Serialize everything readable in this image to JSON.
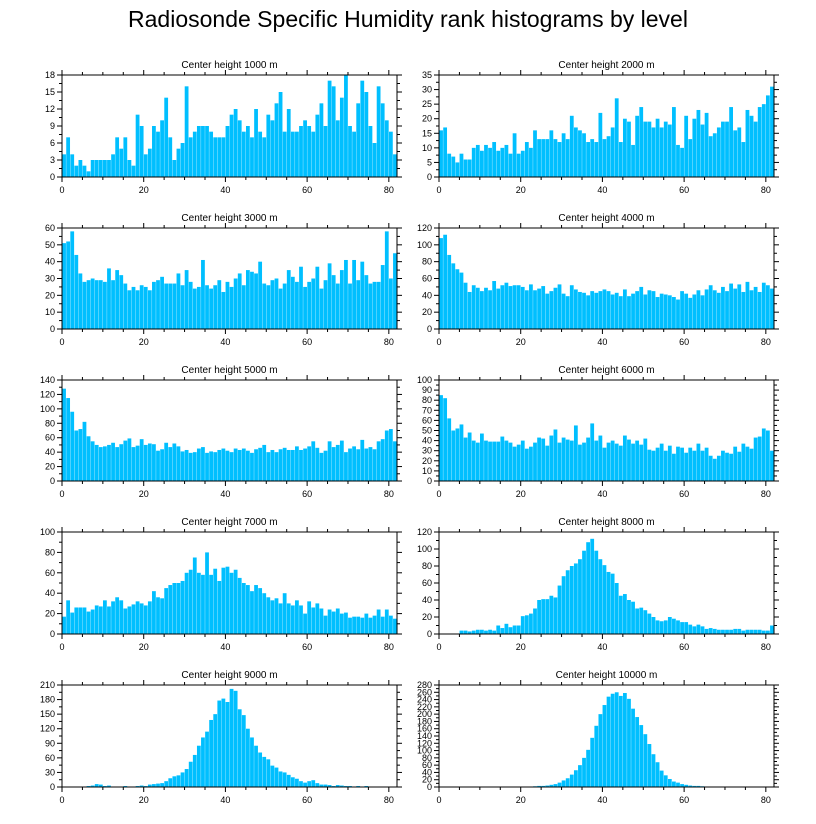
{
  "title": "Radiosonde Specific Humidity rank histograms by level",
  "bar_color": "#00bfff",
  "chart_data": [
    {
      "type": "bar",
      "title": "Center height 1000 m",
      "xlabel": "",
      "ylabel": "",
      "xlim": [
        0,
        82
      ],
      "ylim": [
        0,
        18
      ],
      "x_ticks": [
        0,
        20,
        40,
        60,
        80
      ],
      "y_ticks": [
        0,
        3,
        6,
        9,
        12,
        15,
        18
      ],
      "values": [
        4,
        7,
        4,
        2,
        3,
        2,
        1,
        3,
        3,
        3,
        3,
        3,
        4,
        7,
        5,
        7,
        3,
        2,
        11,
        9,
        4,
        5,
        9,
        8,
        10,
        14,
        7,
        3,
        5,
        6,
        16,
        7,
        8,
        9,
        9,
        9,
        8,
        7,
        7,
        7,
        9,
        11,
        12,
        10,
        8,
        9,
        7,
        12,
        8,
        7,
        11,
        10,
        13,
        15,
        8,
        12,
        8,
        8,
        9,
        10,
        9,
        8,
        11,
        13,
        9,
        17,
        16,
        10,
        14,
        18,
        9,
        8,
        13,
        17,
        15,
        9,
        6,
        16,
        13,
        10,
        8,
        4
      ]
    },
    {
      "type": "bar",
      "title": "Center height 2000 m",
      "xlabel": "",
      "ylabel": "",
      "xlim": [
        0,
        82
      ],
      "ylim": [
        0,
        35
      ],
      "x_ticks": [
        0,
        20,
        40,
        60,
        80
      ],
      "y_ticks": [
        0,
        5,
        10,
        15,
        20,
        25,
        30,
        35
      ],
      "values": [
        16,
        17,
        8,
        7,
        5,
        8,
        6,
        6,
        10,
        11,
        9,
        11,
        10,
        12,
        9,
        10,
        11,
        8,
        15,
        8,
        9,
        12,
        10,
        16,
        13,
        13,
        13,
        16,
        13,
        12,
        15,
        13,
        21,
        17,
        16,
        15,
        12,
        13,
        12,
        22,
        13,
        14,
        17,
        27,
        12,
        20,
        19,
        11,
        21,
        24,
        19,
        19,
        17,
        20,
        17,
        19,
        18,
        24,
        11,
        10,
        21,
        13,
        20,
        23,
        18,
        22,
        14,
        15,
        17,
        19,
        19,
        24,
        16,
        17,
        12,
        23,
        21,
        19,
        24,
        25,
        28,
        31
      ]
    },
    {
      "type": "bar",
      "title": "Center height 3000 m",
      "xlabel": "",
      "ylabel": "",
      "xlim": [
        0,
        82
      ],
      "ylim": [
        0,
        60
      ],
      "x_ticks": [
        0,
        20,
        40,
        60,
        80
      ],
      "y_ticks": [
        0,
        10,
        20,
        30,
        40,
        50,
        60
      ],
      "values": [
        51,
        52,
        58,
        44,
        33,
        28,
        29,
        30,
        29,
        29,
        28,
        36,
        29,
        35,
        32,
        27,
        23,
        25,
        23,
        26,
        25,
        23,
        28,
        29,
        31,
        27,
        27,
        27,
        33,
        26,
        35,
        28,
        24,
        25,
        41,
        26,
        24,
        26,
        29,
        22,
        28,
        25,
        30,
        33,
        26,
        35,
        34,
        33,
        40,
        27,
        26,
        29,
        30,
        24,
        27,
        35,
        31,
        28,
        37,
        25,
        28,
        30,
        37,
        24,
        29,
        39,
        32,
        27,
        35,
        41,
        27,
        41,
        29,
        40,
        32,
        27,
        28,
        28,
        38,
        58,
        30,
        45
      ]
    },
    {
      "type": "bar",
      "title": "Center height 4000 m",
      "xlabel": "",
      "ylabel": "",
      "xlim": [
        0,
        82
      ],
      "ylim": [
        0,
        120
      ],
      "x_ticks": [
        0,
        20,
        40,
        60,
        80
      ],
      "y_ticks": [
        0,
        20,
        40,
        60,
        80,
        100,
        120
      ],
      "values": [
        108,
        112,
        88,
        78,
        71,
        67,
        55,
        44,
        52,
        49,
        45,
        49,
        46,
        57,
        48,
        52,
        55,
        51,
        52,
        52,
        50,
        46,
        53,
        46,
        48,
        51,
        42,
        45,
        49,
        53,
        42,
        39,
        52,
        47,
        44,
        43,
        40,
        45,
        43,
        45,
        47,
        45,
        41,
        43,
        39,
        47,
        39,
        42,
        45,
        50,
        41,
        46,
        45,
        38,
        42,
        41,
        40,
        38,
        35,
        45,
        42,
        37,
        41,
        46,
        40,
        47,
        52,
        46,
        43,
        50,
        45,
        54,
        48,
        53,
        44,
        56,
        46,
        50,
        44,
        55,
        52,
        48
      ]
    },
    {
      "type": "bar",
      "title": "Center height 5000 m",
      "xlabel": "",
      "ylabel": "",
      "xlim": [
        0,
        82
      ],
      "ylim": [
        0,
        140
      ],
      "x_ticks": [
        0,
        20,
        40,
        60,
        80
      ],
      "y_ticks": [
        0,
        20,
        40,
        60,
        80,
        100,
        120,
        140
      ],
      "values": [
        128,
        115,
        96,
        70,
        72,
        82,
        62,
        55,
        50,
        47,
        48,
        50,
        53,
        47,
        51,
        56,
        59,
        47,
        49,
        58,
        50,
        52,
        51,
        42,
        44,
        53,
        47,
        52,
        48,
        41,
        43,
        39,
        40,
        45,
        47,
        39,
        41,
        40,
        43,
        45,
        42,
        40,
        45,
        43,
        45,
        42,
        39,
        44,
        46,
        50,
        40,
        43,
        40,
        44,
        46,
        43,
        43,
        48,
        43,
        45,
        48,
        55,
        46,
        39,
        42,
        55,
        47,
        50,
        56,
        40,
        45,
        48,
        44,
        57,
        45,
        47,
        44,
        55,
        58,
        70,
        72,
        55
      ]
    },
    {
      "type": "bar",
      "title": "Center height 6000 m",
      "xlabel": "",
      "ylabel": "",
      "xlim": [
        0,
        82
      ],
      "ylim": [
        0,
        100
      ],
      "x_ticks": [
        0,
        20,
        40,
        60,
        80
      ],
      "y_ticks": [
        0,
        10,
        20,
        30,
        40,
        50,
        60,
        70,
        80,
        90,
        100
      ],
      "values": [
        85,
        82,
        62,
        50,
        52,
        56,
        43,
        48,
        40,
        38,
        47,
        40,
        39,
        39,
        39,
        44,
        40,
        38,
        34,
        36,
        40,
        32,
        34,
        38,
        43,
        42,
        35,
        45,
        51,
        38,
        43,
        41,
        40,
        55,
        36,
        38,
        43,
        57,
        40,
        45,
        33,
        38,
        40,
        37,
        35,
        45,
        41,
        37,
        40,
        36,
        42,
        31,
        30,
        33,
        37,
        30,
        35,
        27,
        34,
        33,
        28,
        33,
        30,
        37,
        30,
        33,
        25,
        22,
        25,
        30,
        28,
        27,
        34,
        29,
        37,
        34,
        32,
        43,
        44,
        52,
        50,
        30
      ]
    },
    {
      "type": "bar",
      "title": "Center height 7000 m",
      "xlabel": "",
      "ylabel": "",
      "xlim": [
        0,
        82
      ],
      "ylim": [
        0,
        100
      ],
      "x_ticks": [
        0,
        20,
        40,
        60,
        80
      ],
      "y_ticks": [
        0,
        20,
        40,
        60,
        80,
        100
      ],
      "values": [
        17,
        33,
        21,
        26,
        26,
        26,
        22,
        24,
        28,
        27,
        33,
        27,
        32,
        36,
        33,
        25,
        27,
        29,
        32,
        30,
        28,
        32,
        42,
        36,
        35,
        45,
        48,
        50,
        50,
        52,
        60,
        63,
        75,
        60,
        58,
        80,
        58,
        64,
        52,
        65,
        66,
        60,
        63,
        55,
        50,
        48,
        42,
        48,
        45,
        40,
        36,
        33,
        35,
        30,
        40,
        30,
        28,
        33,
        28,
        20,
        32,
        26,
        30,
        25,
        18,
        24,
        22,
        25,
        20,
        21,
        16,
        17,
        17,
        16,
        20,
        16,
        18,
        24,
        17,
        24,
        18,
        15
      ]
    },
    {
      "type": "bar",
      "title": "Center height 8000 m",
      "xlabel": "",
      "ylabel": "",
      "xlim": [
        0,
        82
      ],
      "ylim": [
        0,
        120
      ],
      "x_ticks": [
        0,
        20,
        40,
        60,
        80
      ],
      "y_ticks": [
        0,
        20,
        40,
        60,
        80,
        100,
        120
      ],
      "values": [
        0,
        0,
        0,
        0,
        0,
        4,
        4,
        3,
        4,
        5,
        5,
        4,
        5,
        4,
        10,
        7,
        12,
        8,
        10,
        10,
        21,
        22,
        24,
        30,
        40,
        41,
        41,
        45,
        43,
        57,
        68,
        75,
        80,
        83,
        88,
        98,
        108,
        112,
        98,
        88,
        81,
        73,
        71,
        60,
        45,
        47,
        40,
        38,
        30,
        31,
        28,
        24,
        20,
        16,
        15,
        16,
        20,
        18,
        16,
        14,
        14,
        11,
        9,
        11,
        9,
        6,
        7,
        6,
        5,
        5,
        5,
        5,
        6,
        6,
        4,
        5,
        5,
        5,
        5,
        4,
        4,
        10
      ]
    },
    {
      "type": "bar",
      "title": "Center height 9000 m",
      "xlabel": "",
      "ylabel": "",
      "xlim": [
        0,
        82
      ],
      "ylim": [
        0,
        210
      ],
      "x_ticks": [
        0,
        20,
        40,
        60,
        80
      ],
      "y_ticks": [
        0,
        30,
        60,
        90,
        120,
        150,
        180,
        210
      ],
      "values": [
        1,
        1,
        1,
        1,
        1,
        1,
        2,
        3,
        6,
        5,
        2,
        3,
        1,
        1,
        1,
        2,
        1,
        1,
        2,
        3,
        2,
        5,
        6,
        7,
        8,
        12,
        18,
        22,
        24,
        30,
        37,
        52,
        66,
        85,
        102,
        114,
        138,
        150,
        178,
        182,
        175,
        202,
        198,
        160,
        148,
        120,
        102,
        85,
        71,
        62,
        57,
        44,
        40,
        32,
        30,
        25,
        20,
        17,
        12,
        9,
        12,
        14,
        8,
        5,
        5,
        4,
        2,
        4,
        3,
        2,
        2,
        1,
        2,
        1,
        2,
        1,
        1,
        1,
        1,
        1,
        1
      ]
    },
    {
      "type": "bar",
      "title": "Center height 10000 m",
      "xlabel": "",
      "ylabel": "",
      "xlim": [
        0,
        82
      ],
      "ylim": [
        0,
        280
      ],
      "x_ticks": [
        0,
        20,
        40,
        60,
        80
      ],
      "y_ticks": [
        0,
        20,
        40,
        60,
        80,
        100,
        120,
        140,
        160,
        180,
        200,
        220,
        240,
        260,
        280
      ],
      "values": [
        0,
        0,
        0,
        0,
        0,
        0,
        0,
        0,
        0,
        0,
        0,
        0,
        0,
        0,
        0,
        0,
        0,
        0,
        0,
        0,
        1,
        1,
        1,
        2,
        3,
        3,
        4,
        6,
        8,
        12,
        18,
        24,
        34,
        46,
        60,
        80,
        102,
        135,
        168,
        200,
        225,
        248,
        256,
        260,
        250,
        258,
        242,
        215,
        192,
        170,
        145,
        118,
        90,
        68,
        45,
        32,
        22,
        15,
        12,
        8,
        6,
        4,
        3,
        3,
        2,
        1,
        1,
        1,
        1,
        1,
        0,
        0,
        0,
        0,
        0,
        0,
        0,
        0,
        0,
        0,
        0
      ]
    }
  ]
}
